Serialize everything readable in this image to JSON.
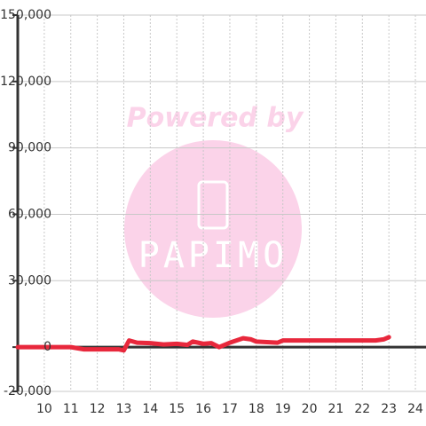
{
  "chart_data": {
    "type": "line",
    "x": [
      9,
      11,
      11.5,
      12.8,
      13,
      13.2,
      13.5,
      14,
      14.5,
      15,
      15.4,
      15.6,
      16,
      16.3,
      16.6,
      17,
      17.5,
      17.8,
      18,
      18.8,
      19,
      20,
      22.5,
      22.8,
      23
    ],
    "series": [
      {
        "color": "#e8283c",
        "values": [
          0,
          0,
          -1000,
          -1000,
          -1500,
          3000,
          2000,
          1800,
          1200,
          1500,
          1000,
          2500,
          1500,
          1800,
          0,
          2000,
          4000,
          3500,
          2500,
          2000,
          3000,
          3000,
          3000,
          3500,
          4500
        ]
      }
    ],
    "xlim": [
      9,
      24.4
    ],
    "ylim": [
      -20000,
      150000
    ],
    "xticks": [
      10,
      11,
      12,
      13,
      14,
      15,
      16,
      17,
      18,
      19,
      20,
      21,
      22,
      23,
      24
    ],
    "yticks": [
      {
        "value": -20000,
        "label": "-20,000"
      },
      0,
      {
        "value": 30000,
        "label": "30,000"
      },
      {
        "value": 60000,
        "label": "60,000"
      },
      {
        "value": 90000,
        "label": "90,000"
      },
      {
        "value": 120000,
        "label": "120,000"
      },
      {
        "value": 150000,
        "label": "150,000"
      }
    ],
    "grid": true
  },
  "watermark": {
    "line1": "Powered by",
    "line2": "PAPIMO"
  }
}
